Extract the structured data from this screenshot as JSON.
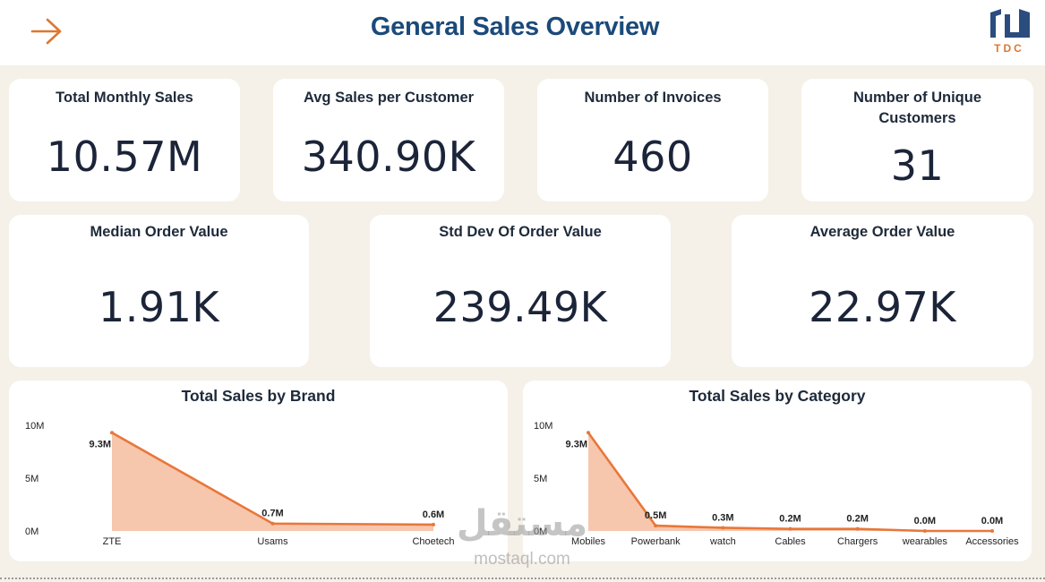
{
  "header": {
    "title": "General Sales Overview",
    "logo_text": "TDC",
    "accent": "#e0762f",
    "title_color": "#1b4a7a"
  },
  "icons": {
    "back": "arrow-right-icon",
    "logo": "tdc-logo-icon"
  },
  "kpis_row1": [
    {
      "label": "Total Monthly Sales",
      "value": "10.57M"
    },
    {
      "label": "Avg Sales per Customer",
      "value": "340.90K"
    },
    {
      "label": "Number of Invoices",
      "value": "460"
    },
    {
      "label": "Number of Unique Customers",
      "value": "31"
    }
  ],
  "kpis_row2": [
    {
      "label": "Median Order Value",
      "value": "1.91K"
    },
    {
      "label": "Std Dev Of Order Value",
      "value": "239.49K"
    },
    {
      "label": "Average Order Value",
      "value": "22.97K"
    }
  ],
  "chart_data": [
    {
      "type": "area",
      "title": "Total Sales by Brand",
      "categories": [
        "ZTE",
        "Usams",
        "Choetech"
      ],
      "values": [
        9.3,
        0.7,
        0.6
      ],
      "data_labels": [
        "9.3M",
        "0.7M",
        "0.6M"
      ],
      "yticks": [
        "0M",
        "5M",
        "10M"
      ],
      "ylim": [
        0,
        10
      ],
      "grid": false,
      "line_color": "#e8773a",
      "fill_color": "#f6c6ad"
    },
    {
      "type": "area",
      "title": "Total Sales by Category",
      "categories": [
        "Mobiles",
        "Powerbank",
        "watch",
        "Cables",
        "Chargers",
        "wearables",
        "Accessories"
      ],
      "values": [
        9.3,
        0.5,
        0.3,
        0.2,
        0.2,
        0.0,
        0.0
      ],
      "data_labels": [
        "9.3M",
        "0.5M",
        "0.3M",
        "0.2M",
        "0.2M",
        "0.0M",
        "0.0M"
      ],
      "yticks": [
        "0M",
        "5M",
        "10M"
      ],
      "ylim": [
        0,
        10
      ],
      "grid": false,
      "line_color": "#e8773a",
      "fill_color": "#f6c6ad"
    }
  ],
  "watermark": {
    "arabic": "مستقل",
    "latin": "mostaql.com"
  }
}
